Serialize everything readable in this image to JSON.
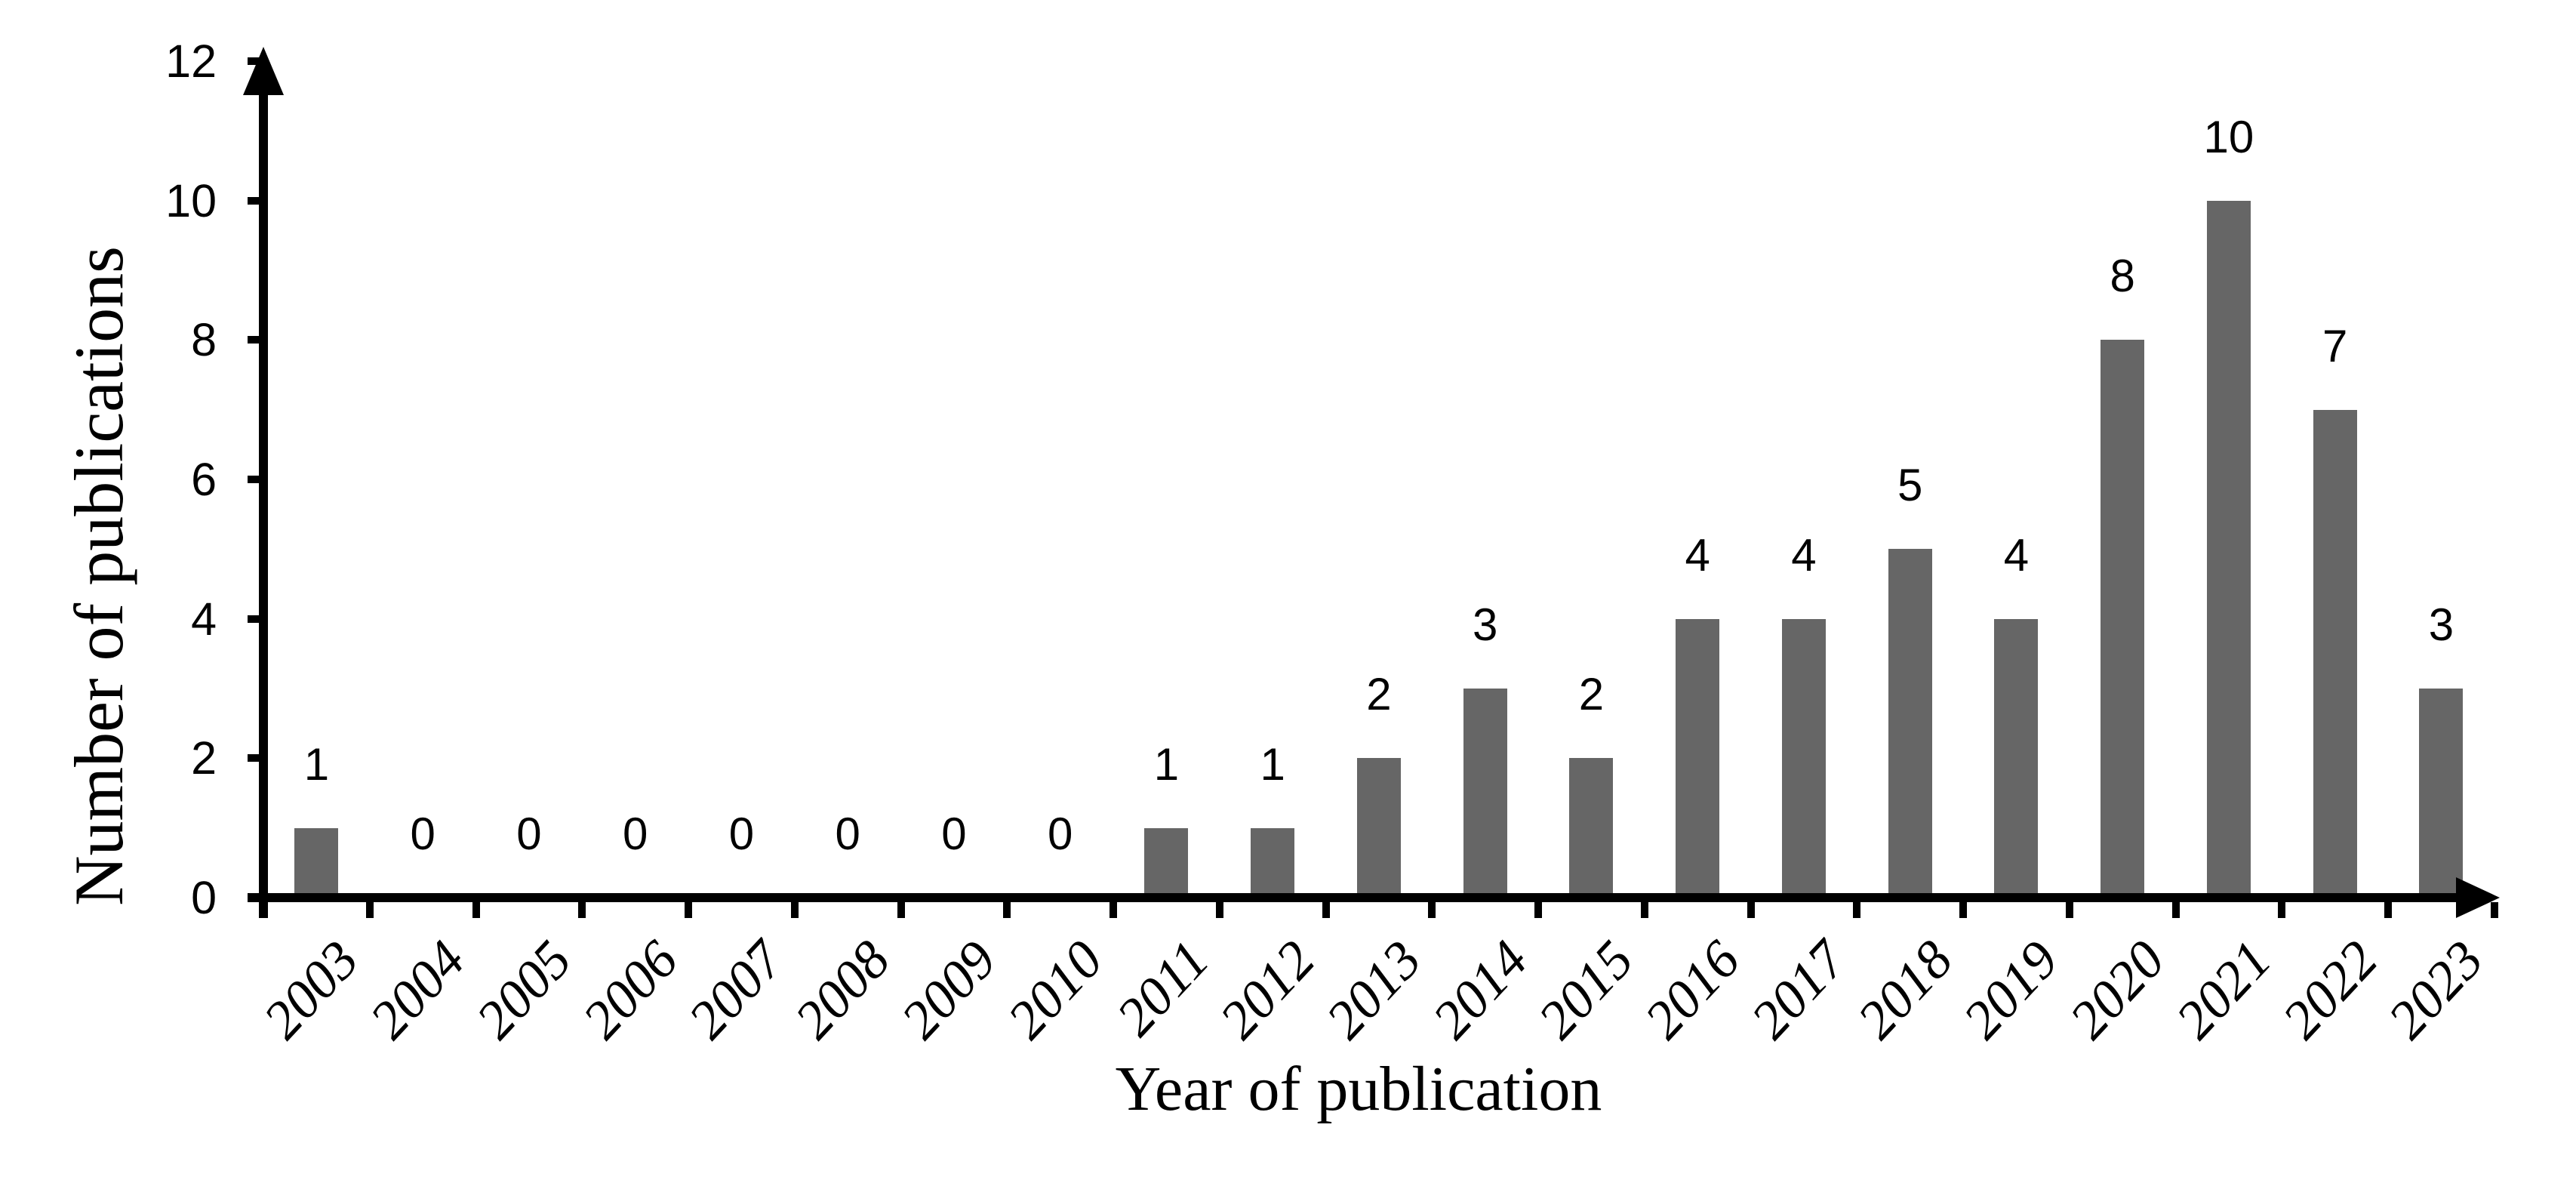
{
  "chart_data": {
    "type": "bar",
    "categories": [
      "2003",
      "2004",
      "2005",
      "2006",
      "2007",
      "2008",
      "2009",
      "2010",
      "2011",
      "2012",
      "2013",
      "2014",
      "2015",
      "2016",
      "2017",
      "2018",
      "2019",
      "2020",
      "2021",
      "2022",
      "2023"
    ],
    "values": [
      1,
      0,
      0,
      0,
      0,
      0,
      0,
      0,
      1,
      1,
      2,
      3,
      2,
      4,
      4,
      5,
      4,
      8,
      10,
      7,
      3
    ],
    "data_labels": [
      "1",
      "0",
      "0",
      "0",
      "0",
      "0",
      "0",
      "0",
      "1",
      "1",
      "2",
      "3",
      "2",
      "4",
      "4",
      "5",
      "4",
      "8",
      "10",
      "7",
      "3"
    ],
    "title": "",
    "xlabel": "Year of publication",
    "ylabel": "Number of publications",
    "ylim": [
      0,
      12
    ],
    "yticks": [
      0,
      2,
      4,
      6,
      8,
      10,
      12
    ],
    "xtick_rotation_deg": -47,
    "grid": false,
    "legend_position": "none",
    "axis_arrowheads": true,
    "bar_color": "#666666",
    "axis_color": "#000000",
    "text_color": "#000000",
    "background_color": "#ffffff"
  }
}
